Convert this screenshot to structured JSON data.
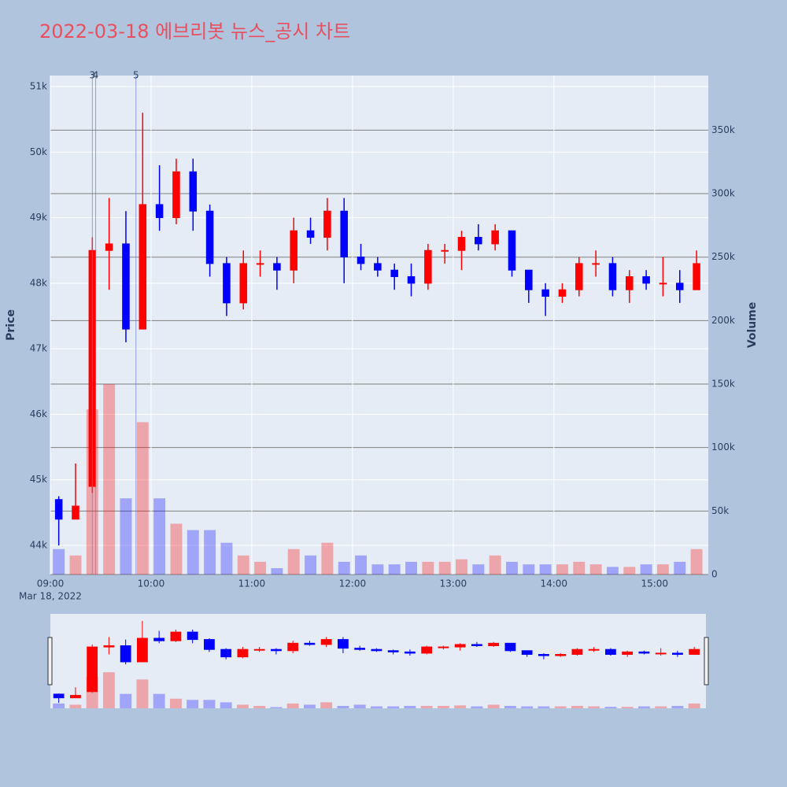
{
  "chart_data": {
    "type": "candlestick",
    "title": "2022-03-18 에브리봇 뉴스_공시 차트",
    "y_label": "Price",
    "y2_label": "Volume",
    "x_sublabel": "Mar 18, 2022",
    "up_color": "#ff0000",
    "down_color": "#0000ff",
    "x": [
      "2022-03-18 09:00",
      "2022-03-18 09:10",
      "2022-03-18 09:20",
      "2022-03-18 09:30",
      "2022-03-18 09:40",
      "2022-03-18 09:50",
      "2022-03-18 10:00",
      "2022-03-18 10:10",
      "2022-03-18 10:20",
      "2022-03-18 10:30",
      "2022-03-18 10:40",
      "2022-03-18 10:50",
      "2022-03-18 11:00",
      "2022-03-18 11:10",
      "2022-03-18 11:20",
      "2022-03-18 11:30",
      "2022-03-18 11:40",
      "2022-03-18 11:50",
      "2022-03-18 12:00",
      "2022-03-18 12:10",
      "2022-03-18 12:20",
      "2022-03-18 12:30",
      "2022-03-18 12:40",
      "2022-03-18 12:50",
      "2022-03-18 13:00",
      "2022-03-18 13:10",
      "2022-03-18 13:20",
      "2022-03-18 13:30",
      "2022-03-18 13:40",
      "2022-03-18 13:50",
      "2022-03-18 14:00",
      "2022-03-18 14:10",
      "2022-03-18 14:20",
      "2022-03-18 14:30",
      "2022-03-18 14:40",
      "2022-03-18 14:50",
      "2022-03-18 15:00",
      "2022-03-18 15:10",
      "2022-03-18 15:20"
    ],
    "open": [
      44700,
      44400,
      44900,
      48500,
      48600,
      47300,
      49200,
      49000,
      49700,
      49100,
      48300,
      47700,
      48300,
      48300,
      48200,
      48800,
      48700,
      49100,
      48400,
      48300,
      48200,
      48100,
      48000,
      48500,
      48500,
      48700,
      48600,
      48800,
      48200,
      47900,
      47800,
      47900,
      48300,
      48300,
      47900,
      48100,
      48000,
      48000,
      47900
    ],
    "high": [
      44750,
      45250,
      48700,
      49300,
      49100,
      50600,
      49800,
      49900,
      49900,
      49200,
      48400,
      48500,
      48500,
      48400,
      49000,
      49000,
      49300,
      49300,
      48600,
      48400,
      48300,
      48300,
      48600,
      48600,
      48800,
      48900,
      48900,
      48800,
      48200,
      48000,
      48000,
      48400,
      48500,
      48400,
      48200,
      48200,
      48400,
      48200,
      48500
    ],
    "low": [
      44000,
      44400,
      44800,
      47900,
      47100,
      47300,
      48800,
      48900,
      48800,
      48100,
      47500,
      47600,
      48100,
      47900,
      48000,
      48600,
      48500,
      48000,
      48200,
      48100,
      47900,
      47800,
      47900,
      48300,
      48200,
      48500,
      48500,
      48100,
      47700,
      47500,
      47700,
      47800,
      48100,
      47800,
      47700,
      47900,
      47800,
      47700,
      47900
    ],
    "close": [
      44400,
      44600,
      48500,
      48600,
      47300,
      49200,
      49000,
      49700,
      49100,
      48300,
      47700,
      48300,
      48300,
      48200,
      48800,
      48700,
      49100,
      48400,
      48300,
      48200,
      48100,
      48000,
      48500,
      48500,
      48700,
      48600,
      48800,
      48200,
      47900,
      47800,
      47900,
      48300,
      48300,
      47900,
      48100,
      48000,
      48000,
      47900,
      48300
    ],
    "volume": [
      20000,
      15000,
      130000,
      150000,
      60000,
      120000,
      60000,
      40000,
      35000,
      35000,
      25000,
      15000,
      10000,
      5000,
      20000,
      15000,
      25000,
      10000,
      15000,
      8000,
      8000,
      10000,
      10000,
      10000,
      12000,
      8000,
      15000,
      10000,
      8000,
      8000,
      8000,
      10000,
      8000,
      6000,
      6000,
      8000,
      8000,
      10000,
      20000
    ],
    "xlim": [
      "2022-03-18 09:00",
      "2022-03-18 15:32"
    ],
    "xticks": [
      {
        "value": "2022-03-18 09:00",
        "label": "09:00"
      },
      {
        "value": "2022-03-18 10:00",
        "label": "10:00"
      },
      {
        "value": "2022-03-18 11:00",
        "label": "11:00"
      },
      {
        "value": "2022-03-18 12:00",
        "label": "12:00"
      },
      {
        "value": "2022-03-18 13:00",
        "label": "13:00"
      },
      {
        "value": "2022-03-18 14:00",
        "label": "14:00"
      },
      {
        "value": "2022-03-18 15:00",
        "label": "15:00"
      }
    ],
    "ylim": [
      43556,
      51168
    ],
    "yticks": [
      {
        "value": 44000,
        "label": "44k"
      },
      {
        "value": 45000,
        "label": "45k"
      },
      {
        "value": 46000,
        "label": "46k"
      },
      {
        "value": 47000,
        "label": "47k"
      },
      {
        "value": 48000,
        "label": "48k"
      },
      {
        "value": 49000,
        "label": "49k"
      },
      {
        "value": 50000,
        "label": "50k"
      },
      {
        "value": 51000,
        "label": "51k"
      }
    ],
    "y2lim": [
      0,
      393000
    ],
    "y2ticks": [
      0,
      {
        "value": 50000,
        "label": "50k"
      },
      {
        "value": 100000,
        "label": "100k"
      },
      {
        "value": 150000,
        "label": "150k"
      },
      {
        "value": 200000,
        "label": "200k"
      },
      {
        "value": 250000,
        "label": "250k"
      },
      {
        "value": 300000,
        "label": "300k"
      },
      {
        "value": 350000,
        "label": "350k"
      }
    ],
    "annotations": [
      {
        "x": "2022-03-18 09:25",
        "text": "3"
      },
      {
        "x": "2022-03-18 09:27",
        "text": "4"
      },
      {
        "x": "2022-03-18 09:51",
        "text": "5"
      }
    ],
    "range_slider": true
  }
}
